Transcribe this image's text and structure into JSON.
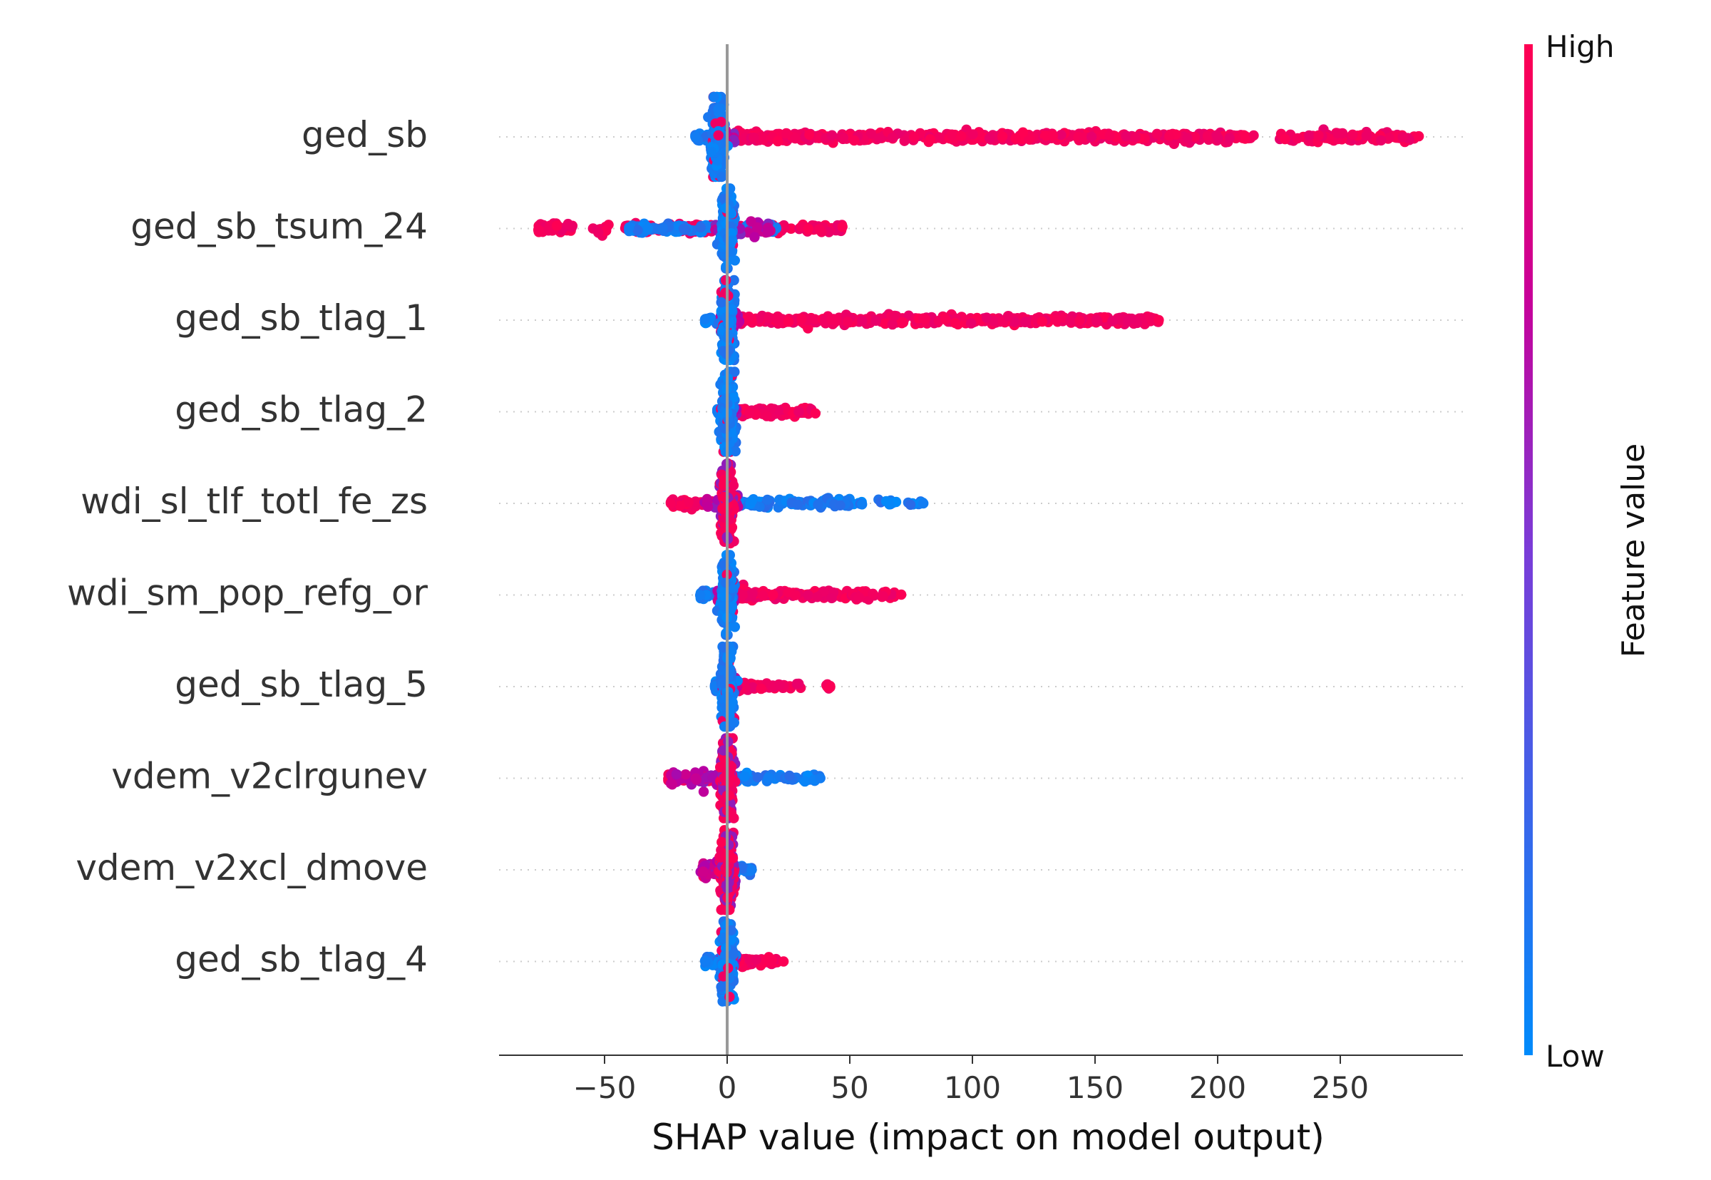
{
  "chart_data": {
    "type": "scatter",
    "title": "",
    "xlabel": "SHAP value (impact on model output)",
    "xlim": [
      -92,
      300
    ],
    "xticks": [
      -50,
      0,
      50,
      100,
      150,
      200,
      250
    ],
    "xtick_labels": [
      "−50",
      "0",
      "50",
      "100",
      "150",
      "200",
      "250"
    ],
    "grid": "dotted horizontal row guides",
    "colorbar": {
      "label": "Feature value",
      "high_label": "High",
      "low_label": "Low",
      "high_color": "#ff0052",
      "low_color": "#008bfb",
      "mid_color": "#b400a8"
    },
    "zero_line_color": "#999999",
    "features": [
      {
        "name": "ged_sb",
        "low_range": [
          -13,
          -3
        ],
        "neutral_range": [
          -6,
          3
        ],
        "high_range": [
          2,
          282
        ],
        "gaps": [
          [
            215,
            225
          ]
        ],
        "density_peak": 0,
        "spread": 0.85
      },
      {
        "name": "ged_sb_tsum_24",
        "low_range": [
          -40,
          20
        ],
        "neutral_range": [
          -5,
          18
        ],
        "high_range": [
          -77,
          47
        ],
        "gaps": [
          [
            -48,
            -42
          ],
          [
            -62,
            -55
          ]
        ],
        "density_peak": 0,
        "spread": 0.85
      },
      {
        "name": "ged_sb_tlag_1",
        "low_range": [
          -9,
          2
        ],
        "neutral_range": [
          -3,
          5
        ],
        "high_range": [
          3,
          176
        ],
        "gaps": [],
        "density_peak": 0,
        "spread": 0.85
      },
      {
        "name": "ged_sb_tlag_2",
        "low_range": [
          -4,
          2
        ],
        "neutral_range": [
          -2,
          4
        ],
        "high_range": [
          3,
          36
        ],
        "gaps": [],
        "density_peak": 0,
        "spread": 0.85
      },
      {
        "name": "wdi_sl_tlf_totl_fe_zs",
        "low_range": [
          0,
          80
        ],
        "neutral_range": [
          -10,
          5
        ],
        "high_range": [
          -23,
          2
        ],
        "gaps": [
          [
            56,
            60
          ],
          [
            70,
            73
          ]
        ],
        "density_peak": 0,
        "spread": 0.85
      },
      {
        "name": "wdi_sm_pop_refg_or",
        "low_range": [
          -11,
          2
        ],
        "neutral_range": [
          -4,
          3
        ],
        "high_range": [
          2,
          71
        ],
        "gaps": [
          [
            60,
            63
          ]
        ],
        "density_peak": 0,
        "spread": 0.85
      },
      {
        "name": "ged_sb_tlag_5",
        "low_range": [
          -5,
          2
        ],
        "neutral_range": [
          -2,
          4
        ],
        "high_range": [
          3,
          42
        ],
        "gaps": [
          [
            30,
            40
          ]
        ],
        "density_peak": 0,
        "spread": 0.85
      },
      {
        "name": "vdem_v2clrgunev",
        "low_range": [
          -1,
          38
        ],
        "neutral_range": [
          -23,
          -3
        ],
        "high_range": [
          -24,
          2
        ],
        "gaps": [],
        "density_peak": 0,
        "spread": 0.85
      },
      {
        "name": "vdem_v2xcl_dmove",
        "low_range": [
          -1,
          10
        ],
        "neutral_range": [
          -11,
          -2
        ],
        "high_range": [
          -10,
          3
        ],
        "gaps": [],
        "density_peak": 0,
        "spread": 0.75
      },
      {
        "name": "ged_sb_tlag_4",
        "low_range": [
          -9,
          2
        ],
        "neutral_range": [
          -3,
          4
        ],
        "high_range": [
          3,
          23
        ],
        "gaps": [],
        "density_peak": 0,
        "spread": 0.85
      }
    ]
  }
}
